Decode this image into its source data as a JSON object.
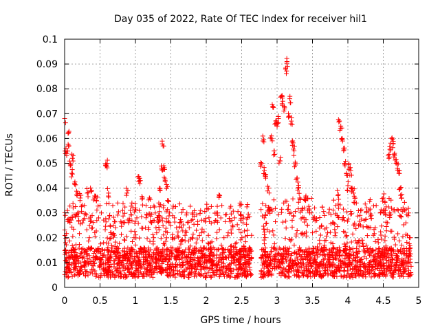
{
  "chart_data": {
    "type": "scatter",
    "title": "Day 035 of 2022, Rate Of TEC Index for receiver hil1",
    "xlabel": "GPS time / hours",
    "ylabel": "ROTI / TECUs",
    "xlim": [
      0,
      5
    ],
    "ylim": [
      0,
      0.1
    ],
    "x_ticks": [
      "0",
      "0.5",
      "1",
      "1.5",
      "2",
      "2.5",
      "3",
      "3.5",
      "4",
      "4.5",
      "5"
    ],
    "y_ticks": [
      "0",
      "0.01",
      "0.02",
      "0.03",
      "0.04",
      "0.05",
      "0.06",
      "0.07",
      "0.08",
      "0.09",
      "0.1"
    ],
    "grid": true,
    "marker": "+",
    "color": "#ff0000",
    "series": [
      {
        "name": "hil1",
        "points": [
          [
            0.0,
            0.068
          ],
          [
            0.01,
            0.029
          ],
          [
            0.02,
            0.055
          ],
          [
            0.03,
            0.012
          ],
          [
            0.03,
            0.054
          ],
          [
            0.04,
            0.031
          ],
          [
            0.05,
            0.062
          ],
          [
            0.06,
            0.057
          ],
          [
            0.07,
            0.01
          ],
          [
            0.08,
            0.049
          ],
          [
            0.1,
            0.046
          ],
          [
            0.11,
            0.052
          ],
          [
            0.12,
            0.032
          ],
          [
            0.14,
            0.042
          ],
          [
            0.16,
            0.014
          ],
          [
            0.18,
            0.038
          ],
          [
            0.2,
            0.03
          ],
          [
            0.22,
            0.036
          ],
          [
            0.25,
            0.026
          ],
          [
            0.28,
            0.033
          ],
          [
            0.3,
            0.01
          ],
          [
            0.32,
            0.038
          ],
          [
            0.35,
            0.02
          ],
          [
            0.38,
            0.039
          ],
          [
            0.4,
            0.012
          ],
          [
            0.42,
            0.036
          ],
          [
            0.45,
            0.035
          ],
          [
            0.48,
            0.028
          ],
          [
            0.5,
            0.033
          ],
          [
            0.52,
            0.03
          ],
          [
            0.55,
            0.018
          ],
          [
            0.58,
            0.049
          ],
          [
            0.6,
            0.05
          ],
          [
            0.62,
            0.038
          ],
          [
            0.65,
            0.022
          ],
          [
            0.68,
            0.033
          ],
          [
            0.7,
            0.014
          ],
          [
            0.72,
            0.024
          ],
          [
            0.75,
            0.034
          ],
          [
            0.78,
            0.012
          ],
          [
            0.8,
            0.026
          ],
          [
            0.82,
            0.031
          ],
          [
            0.85,
            0.019
          ],
          [
            0.88,
            0.038
          ],
          [
            0.9,
            0.012
          ],
          [
            0.92,
            0.027
          ],
          [
            0.95,
            0.034
          ],
          [
            0.98,
            0.02
          ],
          [
            1.0,
            0.032
          ],
          [
            1.02,
            0.028
          ],
          [
            1.05,
            0.044
          ],
          [
            1.07,
            0.043
          ],
          [
            1.1,
            0.036
          ],
          [
            1.12,
            0.014
          ],
          [
            1.15,
            0.033
          ],
          [
            1.18,
            0.024
          ],
          [
            1.2,
            0.036
          ],
          [
            1.22,
            0.011
          ],
          [
            1.25,
            0.027
          ],
          [
            1.28,
            0.03
          ],
          [
            1.3,
            0.022
          ],
          [
            1.33,
            0.034
          ],
          [
            1.35,
            0.039
          ],
          [
            1.37,
            0.048
          ],
          [
            1.39,
            0.057
          ],
          [
            1.4,
            0.049
          ],
          [
            1.42,
            0.043
          ],
          [
            1.44,
            0.04
          ],
          [
            1.46,
            0.035
          ],
          [
            1.48,
            0.03
          ],
          [
            1.5,
            0.025
          ],
          [
            1.52,
            0.02
          ],
          [
            1.55,
            0.028
          ],
          [
            1.58,
            0.024
          ],
          [
            1.6,
            0.015
          ],
          [
            1.63,
            0.026
          ],
          [
            1.66,
            0.019
          ],
          [
            1.7,
            0.021
          ],
          [
            1.73,
            0.012
          ],
          [
            1.76,
            0.024
          ],
          [
            1.8,
            0.02
          ],
          [
            1.83,
            0.014
          ],
          [
            1.86,
            0.023
          ],
          [
            1.9,
            0.012
          ],
          [
            1.93,
            0.022
          ],
          [
            1.96,
            0.016
          ],
          [
            2.0,
            0.011
          ],
          [
            2.03,
            0.021
          ],
          [
            2.06,
            0.018
          ],
          [
            2.1,
            0.013
          ],
          [
            2.13,
            0.027
          ],
          [
            2.16,
            0.03
          ],
          [
            2.19,
            0.037
          ],
          [
            2.22,
            0.033
          ],
          [
            2.25,
            0.02
          ],
          [
            2.28,
            0.012
          ],
          [
            2.31,
            0.022
          ],
          [
            2.34,
            0.014
          ],
          [
            2.37,
            0.025
          ],
          [
            2.4,
            0.028
          ],
          [
            2.43,
            0.018
          ],
          [
            2.46,
            0.011
          ],
          [
            2.49,
            0.022
          ],
          [
            2.52,
            0.026
          ],
          [
            2.55,
            0.015
          ],
          [
            2.58,
            0.023
          ],
          [
            2.61,
            0.012
          ],
          [
            2.64,
            0.021
          ],
          [
            2.78,
            0.05
          ],
          [
            2.8,
            0.059
          ],
          [
            2.82,
            0.047
          ],
          [
            2.84,
            0.044
          ],
          [
            2.86,
            0.012
          ],
          [
            2.88,
            0.04
          ],
          [
            2.9,
            0.032
          ],
          [
            2.92,
            0.061
          ],
          [
            2.94,
            0.073
          ],
          [
            2.96,
            0.055
          ],
          [
            2.98,
            0.066
          ],
          [
            3.0,
            0.065
          ],
          [
            3.02,
            0.068
          ],
          [
            3.04,
            0.051
          ],
          [
            3.06,
            0.077
          ],
          [
            3.08,
            0.075
          ],
          [
            3.1,
            0.073
          ],
          [
            3.12,
            0.088
          ],
          [
            3.14,
            0.091
          ],
          [
            3.16,
            0.07
          ],
          [
            3.18,
            0.076
          ],
          [
            3.2,
            0.067
          ],
          [
            3.22,
            0.059
          ],
          [
            3.24,
            0.055
          ],
          [
            3.26,
            0.05
          ],
          [
            3.28,
            0.044
          ],
          [
            3.3,
            0.04
          ],
          [
            3.32,
            0.036
          ],
          [
            3.35,
            0.031
          ],
          [
            3.38,
            0.028
          ],
          [
            3.4,
            0.035
          ],
          [
            3.43,
            0.025
          ],
          [
            3.46,
            0.03
          ],
          [
            3.5,
            0.022
          ],
          [
            3.53,
            0.032
          ],
          [
            3.56,
            0.027
          ],
          [
            3.6,
            0.019
          ],
          [
            3.63,
            0.025
          ],
          [
            3.66,
            0.016
          ],
          [
            3.7,
            0.024
          ],
          [
            3.73,
            0.03
          ],
          [
            3.76,
            0.018
          ],
          [
            3.8,
            0.026
          ],
          [
            3.83,
            0.033
          ],
          [
            3.86,
            0.037
          ],
          [
            3.88,
            0.067
          ],
          [
            3.9,
            0.065
          ],
          [
            3.92,
            0.06
          ],
          [
            3.94,
            0.055
          ],
          [
            3.96,
            0.049
          ],
          [
            3.98,
            0.046
          ],
          [
            4.0,
            0.041
          ],
          [
            4.02,
            0.048
          ],
          [
            4.04,
            0.047
          ],
          [
            4.06,
            0.04
          ],
          [
            4.08,
            0.038
          ],
          [
            4.1,
            0.036
          ],
          [
            4.12,
            0.034
          ],
          [
            4.15,
            0.025
          ],
          [
            4.18,
            0.031
          ],
          [
            4.2,
            0.019
          ],
          [
            4.23,
            0.027
          ],
          [
            4.26,
            0.017
          ],
          [
            4.3,
            0.024
          ],
          [
            4.33,
            0.029
          ],
          [
            4.36,
            0.021
          ],
          [
            4.4,
            0.033
          ],
          [
            4.43,
            0.018
          ],
          [
            4.46,
            0.03
          ],
          [
            4.5,
            0.036
          ],
          [
            4.53,
            0.031
          ],
          [
            4.56,
            0.026
          ],
          [
            4.58,
            0.052
          ],
          [
            4.6,
            0.055
          ],
          [
            4.62,
            0.06
          ],
          [
            4.64,
            0.058
          ],
          [
            4.66,
            0.054
          ],
          [
            4.68,
            0.05
          ],
          [
            4.7,
            0.048
          ],
          [
            4.72,
            0.046
          ],
          [
            4.74,
            0.04
          ],
          [
            4.76,
            0.036
          ],
          [
            4.78,
            0.032
          ],
          [
            4.8,
            0.031
          ],
          [
            4.82,
            0.026
          ],
          [
            4.84,
            0.021
          ],
          [
            4.86,
            0.03
          ],
          [
            4.88,
            0.02
          ]
        ],
        "band_min": 0.004,
        "band_segments": [
          {
            "x": [
              0.0,
              2.65
            ],
            "typical": 0.012,
            "upper": 0.03
          },
          {
            "x": [
              2.77,
              4.9
            ],
            "typical": 0.012,
            "upper": 0.032
          }
        ],
        "band_count": 2600
      }
    ]
  }
}
